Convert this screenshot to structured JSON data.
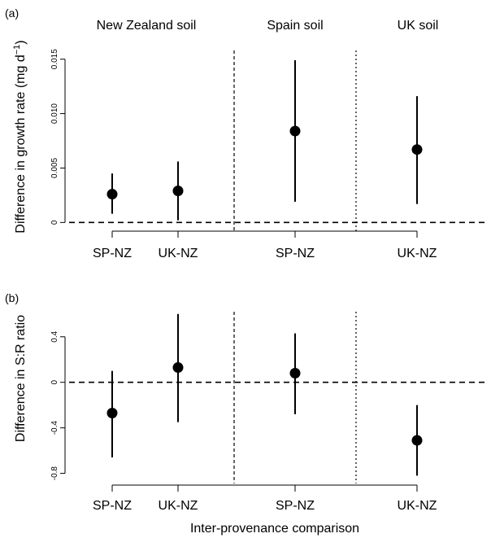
{
  "chart_data": [
    {
      "type": "scatter",
      "panel_label": "(a)",
      "ylabel": "Difference in growth rate (mg d",
      "ylabel_sup": "−1",
      "ylabel_suffix": ")",
      "ylim": [
        -0.0005,
        0.0158
      ],
      "yticks": [
        0,
        0.005,
        0.01,
        0.015
      ],
      "ytick_labels": [
        "0",
        "0.005",
        "0.010",
        "0.015"
      ],
      "groups": [
        "New Zealand soil",
        "Spain soil",
        "UK soil"
      ],
      "categories": [
        "SP-NZ",
        "UK-NZ",
        "SP-NZ",
        "UK-NZ"
      ],
      "category_group": [
        0,
        0,
        1,
        2
      ],
      "values": [
        0.0026,
        0.0029,
        0.0084,
        0.0067
      ],
      "ci_low": [
        0.0008,
        0.0002,
        0.0019,
        0.0017
      ],
      "ci_high": [
        0.0045,
        0.0056,
        0.0149,
        0.0116
      ],
      "reference_line": 0
    },
    {
      "type": "scatter",
      "panel_label": "(b)",
      "ylabel": "Difference in S:R ratio",
      "ylim": [
        -0.86,
        0.62
      ],
      "yticks": [
        -0.8,
        -0.4,
        0,
        0.4
      ],
      "ytick_labels": [
        "-0.8",
        "-0.4",
        "0",
        "0.4"
      ],
      "categories": [
        "SP-NZ",
        "UK-NZ",
        "SP-NZ",
        "UK-NZ"
      ],
      "category_group": [
        0,
        0,
        1,
        2
      ],
      "values": [
        -0.27,
        0.13,
        0.08,
        -0.51
      ],
      "ci_low": [
        -0.66,
        -0.35,
        -0.28,
        -0.82
      ],
      "ci_high": [
        0.1,
        0.6,
        0.43,
        -0.2
      ],
      "reference_line": 0,
      "xlabel": "Inter-provenance comparison"
    }
  ]
}
